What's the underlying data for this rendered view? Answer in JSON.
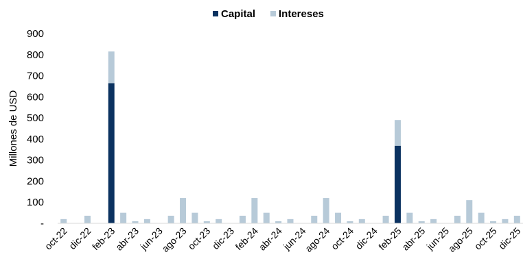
{
  "chart_data": {
    "type": "bar",
    "stacked": true,
    "ylabel": "Millones de USD",
    "xlabel": "",
    "ylim": [
      0,
      900
    ],
    "y_ticks": [
      "-",
      "100",
      "200",
      "300",
      "400",
      "500",
      "600",
      "700",
      "800",
      "900"
    ],
    "y_tick_values": [
      0,
      100,
      200,
      300,
      400,
      500,
      600,
      700,
      800,
      900
    ],
    "grid": false,
    "legend_position": "top",
    "months": [
      "oct-22",
      "nov-22",
      "dic-22",
      "ene-23",
      "feb-23",
      "mar-23",
      "abr-23",
      "may-23",
      "jun-23",
      "jul-23",
      "ago-23",
      "sep-23",
      "oct-23",
      "nov-23",
      "dic-23",
      "ene-24",
      "feb-24",
      "mar-24",
      "abr-24",
      "may-24",
      "jun-24",
      "jul-24",
      "ago-24",
      "sep-24",
      "oct-24",
      "nov-24",
      "dic-24",
      "ene-25",
      "feb-25",
      "mar-25",
      "abr-25",
      "may-25",
      "jun-25",
      "jul-25",
      "ago-25",
      "sep-25",
      "oct-25",
      "nov-25",
      "dic-25"
    ],
    "x_tick_labels": [
      "oct-22",
      "dic-22",
      "feb-23",
      "abr-23",
      "jun-23",
      "ago-23",
      "oct-23",
      "dic-23",
      "feb-24",
      "abr-24",
      "jun-24",
      "ago-24",
      "oct-24",
      "dic-24",
      "feb-25",
      "abr-25",
      "jun-25",
      "ago-25",
      "oct-25",
      "dic-25"
    ],
    "series": [
      {
        "name": "Capital",
        "color": "#0b3260",
        "values": [
          0,
          0,
          0,
          0,
          665,
          0,
          0,
          0,
          0,
          0,
          0,
          0,
          0,
          0,
          0,
          0,
          0,
          0,
          0,
          0,
          0,
          0,
          0,
          0,
          0,
          0,
          0,
          0,
          368,
          0,
          0,
          0,
          0,
          0,
          0,
          0,
          0,
          0,
          0
        ]
      },
      {
        "name": "Intereses",
        "color": "#b7cad8",
        "values": [
          20,
          0,
          36,
          0,
          150,
          50,
          10,
          20,
          0,
          36,
          120,
          50,
          10,
          20,
          0,
          36,
          120,
          50,
          10,
          20,
          0,
          36,
          120,
          50,
          10,
          20,
          0,
          36,
          122,
          50,
          10,
          20,
          0,
          36,
          110,
          50,
          10,
          20,
          36
        ]
      }
    ]
  }
}
